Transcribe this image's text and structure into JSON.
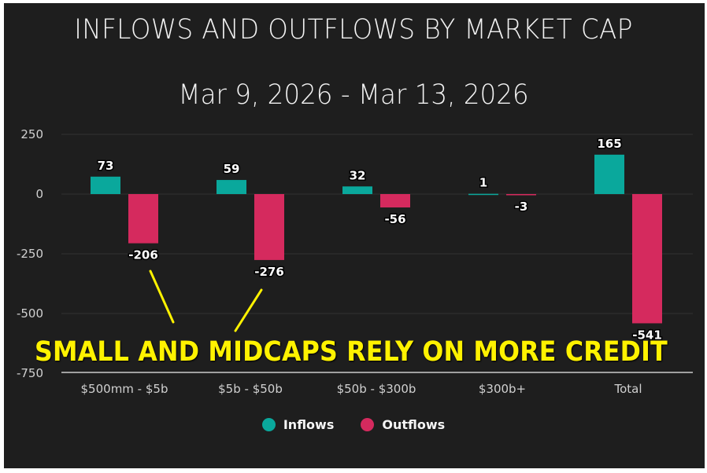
{
  "header": {
    "title": "INFLOWS AND OUTFLOWS BY MARKET CAP",
    "subtitle": "Mar 9, 2026 - Mar 13, 2026"
  },
  "annotation": {
    "text": "SMALL AND MIDCAPS RELY ON MORE CREDIT",
    "color": "#fff200"
  },
  "legend": {
    "items": [
      {
        "label": "Inflows",
        "color": "#0aa89c"
      },
      {
        "label": "Outflows",
        "color": "#d52a5e"
      }
    ]
  },
  "colors": {
    "background": "#1e1e1e",
    "inflows": "#0aa89c",
    "outflows": "#d52a5e",
    "gridline": "#2c2c2c",
    "axis": "#a0a0a0"
  },
  "chart_data": {
    "type": "bar",
    "title": "INFLOWS AND OUTFLOWS BY MARKET CAP",
    "subtitle": "Mar 9, 2026 - Mar 13, 2026",
    "categories": [
      "$500mm - $5b",
      "$5b - $50b",
      "$50b - $300b",
      "$300b+",
      "Total"
    ],
    "series": [
      {
        "name": "Inflows",
        "values": [
          73,
          59,
          32,
          1,
          165
        ]
      },
      {
        "name": "Outflows",
        "values": [
          -206,
          -276,
          -56,
          -3,
          -541
        ]
      }
    ],
    "xlabel": "",
    "ylabel": "",
    "ylim": [
      -750,
      250
    ],
    "yticks": [
      250,
      0,
      -250,
      -500,
      -750
    ],
    "grid": true,
    "legend_position": "bottom",
    "data_labels": true,
    "annotations": [
      "SMALL AND MIDCAPS RELY ON MORE CREDIT"
    ]
  }
}
